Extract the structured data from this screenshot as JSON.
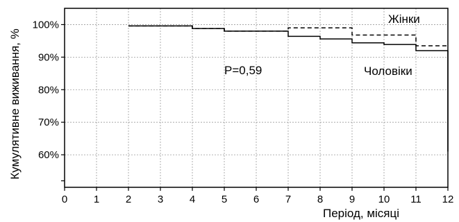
{
  "chart_data": {
    "type": "line",
    "title": "",
    "xlabel": "Період, місяці",
    "ylabel": "Кумулятивне виживання, %",
    "xlim": [
      0,
      12
    ],
    "ylim": [
      50,
      105
    ],
    "grid": true,
    "x_ticks": [
      "0",
      "1",
      "2",
      "3",
      "4",
      "5",
      "6",
      "7",
      "8",
      "9",
      "10",
      "11",
      "12"
    ],
    "y_ticks": [
      {
        "value": 60,
        "label": "60%"
      },
      {
        "value": 70,
        "label": "70%"
      },
      {
        "value": 80,
        "label": "80%"
      },
      {
        "value": 90,
        "label": "90%"
      },
      {
        "value": 100,
        "label": "100%"
      }
    ],
    "annotation": "P=0,59",
    "series": [
      {
        "name": "Жінки",
        "line_style": "dashed",
        "steps": [
          [
            2,
            99.6
          ],
          [
            4,
            98.8
          ],
          [
            5,
            98.0
          ],
          [
            7,
            99.0
          ],
          [
            9,
            96.8
          ],
          [
            11,
            93.5
          ],
          [
            12,
            93.5
          ]
        ]
      },
      {
        "name": "Чоловіки",
        "line_style": "solid",
        "steps": [
          [
            2,
            99.6
          ],
          [
            4,
            98.8
          ],
          [
            5,
            98.0
          ],
          [
            7,
            96.4
          ],
          [
            8,
            95.6
          ],
          [
            9,
            94.4
          ],
          [
            10,
            93.9
          ],
          [
            11,
            92.0
          ],
          [
            12,
            92.0
          ]
        ]
      }
    ]
  }
}
